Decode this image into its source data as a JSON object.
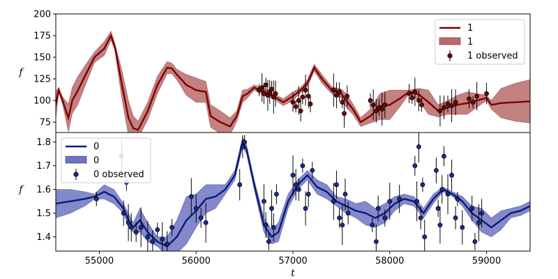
{
  "chart_data": [
    {
      "type": "line",
      "panel": "top",
      "xlabel": "",
      "ylabel": "f",
      "xlim": [
        54550,
        59450
      ],
      "ylim": [
        63,
        200
      ],
      "yticks": [
        75,
        100,
        125,
        150,
        175,
        200
      ],
      "colors": {
        "line": "#7b0000",
        "band": "#b86b6b",
        "marker": "#7b0000"
      },
      "legend": {
        "placement": "top-right",
        "line_label": "1",
        "band_label": "1",
        "observed_label": "1 observed"
      },
      "model": {
        "x": [
          54550,
          54580,
          54620,
          54680,
          54720,
          54780,
          54850,
          54950,
          55050,
          55120,
          55160,
          55230,
          55300,
          55350,
          55400,
          55500,
          55600,
          55700,
          55750,
          55800,
          55900,
          56000,
          56100,
          56150,
          56250,
          56350,
          56420,
          56480,
          56530,
          56600,
          56700,
          56800,
          56900,
          57000,
          57080,
          57150,
          57220,
          57300,
          57400,
          57500,
          57550,
          57620,
          57700,
          57800,
          57900,
          58000,
          58100,
          58200,
          58300,
          58400,
          58500,
          58600,
          58700,
          58800,
          58900,
          59000,
          59050,
          59150,
          59300,
          59450
        ],
        "y": [
          95,
          112,
          100,
          80,
          100,
          112,
          128,
          150,
          160,
          175,
          162,
          120,
          80,
          68,
          66,
          88,
          118,
          138,
          137,
          130,
          118,
          112,
          110,
          82,
          75,
          70,
          82,
          105,
          108,
          115,
          110,
          105,
          98,
          105,
          112,
          120,
          138,
          125,
          112,
          108,
          100,
          90,
          75,
          82,
          93,
          95,
          102,
          110,
          107,
          98,
          88,
          92,
          95,
          97,
          100,
          103,
          95,
          97,
          98,
          99
        ],
        "upper": [
          110,
          115,
          104,
          96,
          115,
          128,
          140,
          156,
          168,
          180,
          166,
          136,
          100,
          82,
          76,
          98,
          128,
          145,
          143,
          136,
          130,
          126,
          122,
          95,
          88,
          80,
          88,
          112,
          113,
          118,
          114,
          108,
          102,
          110,
          115,
          124,
          142,
          130,
          116,
          113,
          108,
          96,
          80,
          90,
          108,
          112,
          112,
          112,
          114,
          112,
          95,
          100,
          106,
          110,
          108,
          106,
          100,
          114,
          120,
          124
        ]
      },
      "observed": {
        "x": [
          56650,
          56680,
          56700,
          56720,
          56740,
          56760,
          56780,
          56800,
          56820,
          57000,
          57030,
          57060,
          57080,
          57100,
          57130,
          57160,
          57180,
          57420,
          57450,
          57480,
          57510,
          57530,
          57560,
          57800,
          57830,
          57860,
          57890,
          57920,
          57950,
          58200,
          58230,
          58260,
          58300,
          58330,
          58520,
          58560,
          58600,
          58640,
          58680,
          58820,
          58860,
          58900,
          59000
        ],
        "y": [
          112,
          115,
          108,
          118,
          106,
          110,
          113,
          104,
          108,
          98,
          93,
          100,
          88,
          104,
          112,
          105,
          96,
          112,
          106,
          110,
          98,
          85,
          105,
          100,
          95,
          88,
          92,
          90,
          95,
          108,
          103,
          110,
          100,
          95,
          88,
          92,
          96,
          94,
          98,
          102,
          98,
          105,
          108
        ]
      }
    },
    {
      "type": "line",
      "panel": "bottom",
      "xlabel": "t",
      "ylabel": "f",
      "xlim": [
        54550,
        59450
      ],
      "ylim": [
        1.34,
        1.84
      ],
      "xticks": [
        55000,
        56000,
        57000,
        58000,
        59000
      ],
      "yticks": [
        1.4,
        1.5,
        1.6,
        1.7,
        1.8
      ],
      "colors": {
        "line": "#0b1a7a",
        "band": "#6f74c2",
        "marker": "#1a2a9a"
      },
      "legend": {
        "placement": "top-left",
        "line_label": "0",
        "band_label": "0",
        "observed_label": "0 observed"
      },
      "model": {
        "x": [
          54550,
          54700,
          54850,
          54950,
          55050,
          55150,
          55250,
          55300,
          55350,
          55420,
          55500,
          55600,
          55700,
          55800,
          55900,
          56000,
          56100,
          56200,
          56300,
          56400,
          56480,
          56520,
          56600,
          56700,
          56780,
          56850,
          56950,
          57050,
          57150,
          57250,
          57350,
          57450,
          57550,
          57650,
          57750,
          57850,
          57950,
          58050,
          58150,
          58250,
          58350,
          58450,
          58550,
          58650,
          58750,
          58850,
          58950,
          59050,
          59150,
          59250,
          59350,
          59450
        ],
        "y": [
          1.54,
          1.55,
          1.56,
          1.57,
          1.59,
          1.57,
          1.52,
          1.47,
          1.44,
          1.47,
          1.42,
          1.38,
          1.36,
          1.4,
          1.47,
          1.51,
          1.56,
          1.57,
          1.6,
          1.66,
          1.8,
          1.77,
          1.62,
          1.45,
          1.4,
          1.42,
          1.55,
          1.62,
          1.66,
          1.61,
          1.59,
          1.55,
          1.53,
          1.51,
          1.5,
          1.48,
          1.5,
          1.54,
          1.56,
          1.55,
          1.5,
          1.56,
          1.6,
          1.58,
          1.55,
          1.5,
          1.47,
          1.44,
          1.47,
          1.5,
          1.51,
          1.53
        ],
        "upper": [
          1.6,
          1.6,
          1.59,
          1.58,
          1.62,
          1.6,
          1.54,
          1.5,
          1.46,
          1.52,
          1.46,
          1.4,
          1.4,
          1.47,
          1.57,
          1.58,
          1.62,
          1.62,
          1.62,
          1.68,
          1.82,
          1.79,
          1.64,
          1.48,
          1.43,
          1.46,
          1.58,
          1.64,
          1.68,
          1.64,
          1.62,
          1.57,
          1.56,
          1.54,
          1.55,
          1.52,
          1.54,
          1.57,
          1.58,
          1.57,
          1.52,
          1.58,
          1.61,
          1.59,
          1.57,
          1.53,
          1.52,
          1.48,
          1.51,
          1.52,
          1.53,
          1.55
        ]
      },
      "observed": {
        "x": [
          54970,
          55230,
          55250,
          55280,
          55300,
          55330,
          55380,
          55430,
          55500,
          55550,
          55600,
          55650,
          55700,
          55750,
          55950,
          56000,
          56050,
          56100,
          56450,
          56480,
          56500,
          56700,
          56720,
          56750,
          56780,
          56800,
          56830,
          57000,
          57030,
          57060,
          57100,
          57130,
          57160,
          57200,
          57420,
          57450,
          57480,
          57510,
          57540,
          57570,
          57820,
          57860,
          57880,
          57950,
          58000,
          58100,
          58260,
          58280,
          58300,
          58320,
          58340,
          58360,
          58480,
          58500,
          58520,
          58540,
          58560,
          58600,
          58640,
          58680,
          58700,
          58750,
          58850,
          58880,
          58920,
          58950
        ],
        "y": [
          1.56,
          1.74,
          1.5,
          1.63,
          1.46,
          1.44,
          1.42,
          1.44,
          1.4,
          1.38,
          1.43,
          1.39,
          1.37,
          1.44,
          1.57,
          1.52,
          1.48,
          1.46,
          1.62,
          1.78,
          1.8,
          1.55,
          1.45,
          1.38,
          1.52,
          1.44,
          1.58,
          1.66,
          1.62,
          1.6,
          1.7,
          1.52,
          1.58,
          1.68,
          1.55,
          1.62,
          1.48,
          1.45,
          1.58,
          1.5,
          1.45,
          1.38,
          1.52,
          1.48,
          1.55,
          1.56,
          1.7,
          1.55,
          1.78,
          1.48,
          1.62,
          1.4,
          1.68,
          1.52,
          1.45,
          1.6,
          1.74,
          1.58,
          1.66,
          1.48,
          1.56,
          1.44,
          1.52,
          1.38,
          1.46,
          1.5
        ]
      }
    }
  ]
}
